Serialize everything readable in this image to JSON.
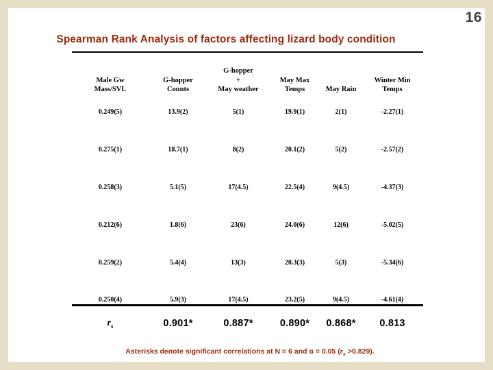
{
  "page_number": "16",
  "title": "Spearman Rank Analysis of factors affecting lizard body condition",
  "colors": {
    "frame_beige": "#e7dec8",
    "title_red": "#9a2b0e",
    "text_black": "#000000"
  },
  "table": {
    "columns": [
      [
        "Male Gw",
        "Mass/SVL"
      ],
      [
        "G-hopper",
        "Counts"
      ],
      [
        "G-hopper",
        "+",
        "May weather"
      ],
      [
        "May Max",
        "Temps"
      ],
      [
        "May Rain"
      ],
      [
        "Winter Min",
        "Temps"
      ]
    ],
    "rows": [
      [
        "0.249(5)",
        "13.9(2)",
        "5(1)",
        "19.9(1)",
        "2(1)",
        "-2.27(1)"
      ],
      [
        "0.275(1)",
        "18.7(1)",
        "8(2)",
        "20.1(2)",
        "5(2)",
        "-2.57(2)"
      ],
      [
        "0.258(3)",
        "5.1(5)",
        "17(4.5)",
        "22.5(4)",
        "9(4.5)",
        "-4.37(3)"
      ],
      [
        "0.212(6)",
        "1.8(6)",
        "23(6)",
        "24.0(6)",
        "12(6)",
        "-5.02(5)"
      ],
      [
        "0.259(2)",
        "5.4(4)",
        "13(3)",
        "20.3(3)",
        "5(3)",
        "-5.34(6)"
      ],
      [
        "0.250(4)",
        "5.9(3)",
        "17(4.5)",
        "23.2(5)",
        "9(4.5)",
        "-4.61(4)"
      ]
    ],
    "rs": {
      "label_base": "r",
      "label_sub": "s",
      "values": [
        "0.901*",
        "0.887*",
        "0.890*",
        "0.868*",
        "0.813"
      ]
    }
  },
  "footnote": {
    "prefix": "Asterisks denote significant correlations at N = 6 and α = 0.05 (",
    "r": "r",
    "sub": "s",
    "suffix": " >0.829)."
  }
}
